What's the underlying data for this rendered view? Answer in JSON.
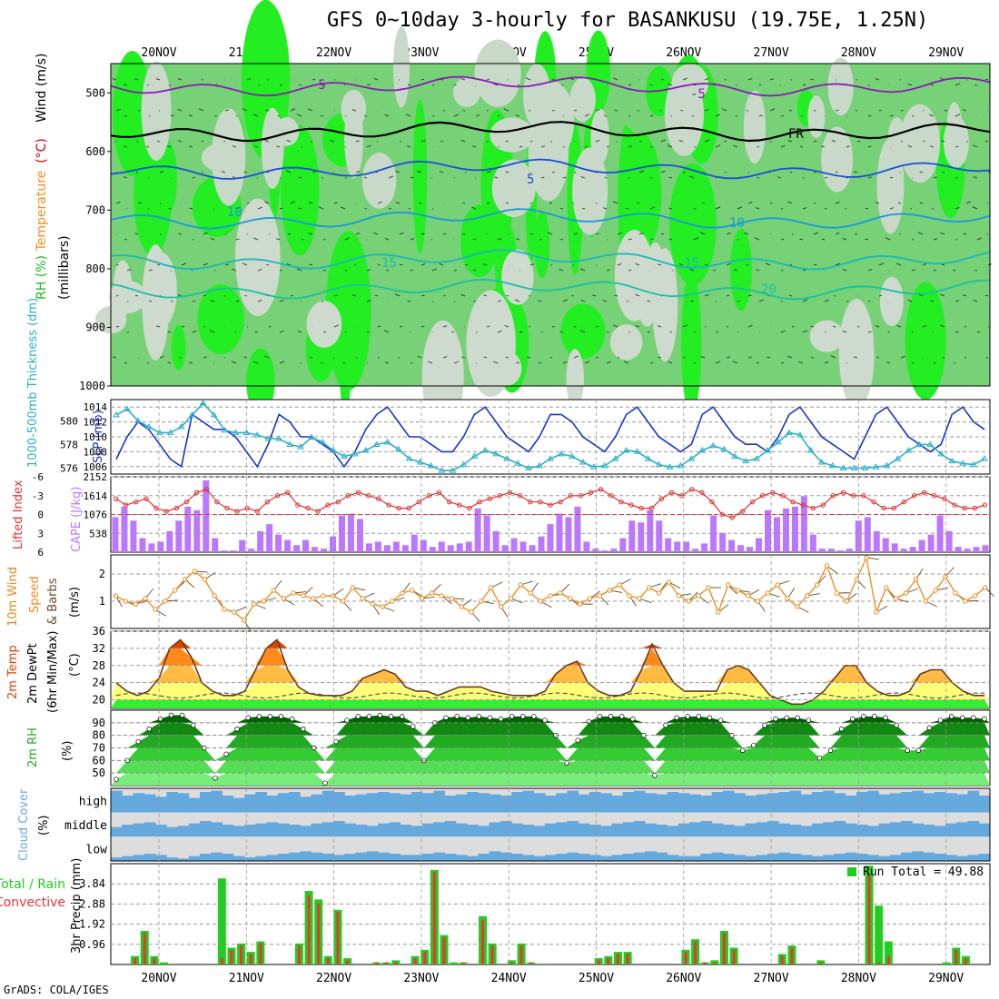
{
  "title": "GFS 0~10day 3-hourly for BASANKUSU (19.75E, 1.25N)",
  "footer": "GrADS: COLA/IGES",
  "chart_data": [
    {
      "type": "heatmap",
      "id": "upper",
      "ylabel_parts": [
        {
          "text": "RH (%)",
          "color": "#22bb22"
        },
        {
          "text": "Temperature",
          "color": "#ff8c1a"
        },
        {
          "text": " (°C)",
          "color": "#cc0000"
        },
        {
          "text": "Wind (m/s)",
          "color": "#000000"
        }
      ],
      "ylabel2": "(millibars)",
      "y_ticks": [
        500,
        600,
        700,
        800,
        900,
        1000
      ],
      "ylim": [
        450,
        1000
      ],
      "x_ticks": [
        "20NOV",
        "21NOV",
        "22NOV",
        "23NOV",
        "24NOV",
        "25NOV",
        "26NOV",
        "27NOV",
        "28NOV",
        "29NOV"
      ],
      "isotherm_labels": [
        "-5",
        "-5",
        "FR",
        "5",
        "10",
        "10",
        "15",
        "15",
        "20"
      ],
      "isotherms": [
        {
          "label": "-5",
          "level": 488,
          "color": "#8a1ab8"
        },
        {
          "label": "FR",
          "level": 565,
          "color": "#000000"
        },
        {
          "label": "5",
          "level": 630,
          "color": "#1a4fd6"
        },
        {
          "label": "10",
          "level": 715,
          "color": "#1a9ad6"
        },
        {
          "label": "15",
          "level": 785,
          "color": "#1ab8b8"
        },
        {
          "label": "20",
          "level": 835,
          "color": "#1ac0a0"
        }
      ]
    },
    {
      "type": "line",
      "id": "slp",
      "ylabel_left": "1000-500mb Thickness (dm)",
      "ylabel_right": "SLP (mb)",
      "y_ticks_left": [
        576,
        578,
        580
      ],
      "y_ticks_right": [
        1006,
        1008,
        1010,
        1012,
        1014
      ],
      "ylim_left": [
        575.5,
        581.8
      ],
      "ylim_right": [
        1005,
        1015
      ],
      "series": [
        {
          "name": "",
          "axis": "right",
          "color": "#1a34c8",
          "values": [
            1007,
            1010,
            1012,
            1011,
            1009,
            1007,
            1006,
            1013,
            1012,
            1011,
            1011,
            1010,
            1008,
            1006,
            1009,
            1013,
            1012,
            1010,
            1010,
            1009,
            1008,
            1006,
            1008,
            1011,
            1013,
            1014,
            1012,
            1010,
            1010,
            1009,
            1008,
            1008,
            1010,
            1013,
            1014,
            1012,
            1010,
            1009,
            1008,
            1010,
            1013,
            1013,
            1012,
            1010,
            1009,
            1008,
            1010,
            1013,
            1014,
            1012,
            1010,
            1009,
            1008,
            1009,
            1013,
            1014,
            1012,
            1010,
            1009,
            1009,
            1008,
            1010,
            1013,
            1014,
            1012,
            1010,
            1009,
            1008,
            1007,
            1010,
            1013,
            1014,
            1012,
            1010,
            1009,
            1008,
            1009,
            1013,
            1014,
            1012,
            1011
          ]
        },
        {
          "name": "",
          "axis": "left",
          "color": "#2ab0c8",
          "values": [
            580.5,
            581,
            580,
            579.5,
            579,
            579,
            579.5,
            580.5,
            581.5,
            580.5,
            579.2,
            579,
            579,
            578.8,
            578.5,
            578.5,
            578,
            577.8,
            578.6,
            578.2,
            577.5,
            577,
            577.2,
            577.5,
            578,
            578.2,
            577.6,
            576.8,
            576.5,
            576.2,
            575.8,
            575.8,
            576.3,
            577,
            577.5,
            577.2,
            576.8,
            576.4,
            576,
            576.2,
            576.8,
            577.2,
            577,
            576.5,
            576.1,
            576.2,
            576.8,
            577.5,
            577.4,
            576.8,
            576.3,
            576.1,
            576.2,
            576.8,
            577.5,
            577.9,
            577.6,
            577,
            576.6,
            576.8,
            577.5,
            578.2,
            579,
            578.8,
            577.5,
            576.5,
            576.2,
            576,
            576,
            576,
            576.1,
            576.2,
            576.8,
            577.5,
            578,
            578,
            577.2,
            576.6,
            576.4,
            576.3,
            576.8
          ]
        }
      ]
    },
    {
      "type": "bar",
      "id": "cape",
      "ylabel_left": "Lifted Index",
      "ylabel_right": "CAPE (J/kg)",
      "y_ticks_left": [
        "-6",
        "-3",
        "0",
        "3",
        "6"
      ],
      "y_ticks_right": [
        538,
        1076,
        1614,
        2152
      ],
      "ylim_right": [
        0,
        2152
      ],
      "cape_values": [
        1000,
        1300,
        900,
        400,
        250,
        300,
        600,
        900,
        1300,
        1200,
        2050,
        400,
        50,
        50,
        350,
        100,
        600,
        800,
        500,
        350,
        200,
        350,
        150,
        100,
        450,
        1050,
        1100,
        950,
        250,
        300,
        200,
        300,
        200,
        500,
        350,
        150,
        300,
        200,
        250,
        300,
        1250,
        1050,
        600,
        200,
        400,
        300,
        200,
        450,
        800,
        1100,
        1000,
        1300,
        300,
        100,
        50,
        100,
        400,
        900,
        850,
        1200,
        900,
        400,
        300,
        300,
        100,
        250,
        1050,
        550,
        350,
        200,
        150,
        400,
        1200,
        1000,
        1250,
        1300,
        1600,
        500,
        100,
        100,
        50,
        100,
        900,
        1000,
        600,
        400,
        250,
        100,
        150,
        350,
        500,
        1050,
        600,
        150,
        100,
        150,
        200
      ],
      "li_values": [
        -2.5,
        -1.5,
        -2,
        -2.5,
        -1,
        -0.5,
        -1,
        -2,
        -3.5,
        -4,
        -2,
        -1,
        -0.5,
        -1,
        -0.5,
        -2,
        -3,
        -3.5,
        -1.5,
        -1,
        -0.5,
        -1.5,
        -2,
        -3,
        -3.5,
        -3,
        -2.5,
        -1.5,
        -1,
        -1,
        -2,
        -3,
        -3.5,
        -2,
        -1.5,
        -1,
        -2,
        -2.5,
        -3,
        -3.5,
        -3,
        -2,
        -2,
        -1.5,
        -2,
        -3,
        -3,
        -3.5,
        -4,
        -3,
        -2,
        -1.5,
        -1,
        -1,
        -2.5,
        -3.5,
        -3,
        -4,
        -3.5,
        -2,
        0,
        0.5,
        -0.5,
        -2,
        -3,
        -3.5,
        -3,
        -2,
        -1.5,
        -1,
        -1.5,
        -3,
        -3.5,
        -3,
        -3,
        -2,
        -1,
        -1,
        -2,
        -3,
        -3.5,
        -3,
        -2.5,
        -1.5,
        -1,
        -1,
        -1.5
      ]
    },
    {
      "type": "line",
      "id": "wind",
      "ylabel": "10m Wind Speed & Barbs (m/s)",
      "y_ticks": [
        1,
        2
      ],
      "ylim": [
        0,
        2.7
      ],
      "series": [
        {
          "name": "",
          "color": "#e88a1a",
          "values": [
            1.2,
            1.0,
            0.9,
            1.1,
            0.7,
            1.0,
            1.4,
            1.8,
            2.1,
            1.8,
            1.2,
            0.7,
            0.6,
            0.3,
            0.9,
            1.0,
            1.4,
            1.1,
            1.3,
            1.2,
            1.1,
            1.2,
            1.2,
            1.0,
            1.5,
            1.1,
            0.9,
            0.8,
            1.0,
            1.3,
            1.4,
            1.1,
            1.3,
            1.2,
            1.1,
            0.8,
            0.6,
            1.0,
            1.5,
            0.8,
            1.1,
            1.6,
            1.3,
            1.0,
            1.2,
            1.3,
            1.1,
            0.9,
            1.1,
            1.2,
            1.4,
            1.6,
            1.2,
            1.1,
            1.5,
            1.3,
            1.7,
            1.2,
            1.0,
            1.2,
            1.5,
            0.6,
            1.6,
            1.4,
            1.2,
            1.0,
            1.3,
            1.6,
            1.1,
            0.8,
            1.2,
            1.6,
            2.3,
            1.3,
            1.0,
            1.8,
            2.6,
            0.6,
            1.5,
            1.1,
            1.3,
            1.8,
            1.0,
            1.4,
            1.9,
            1.3,
            1.0,
            1.2,
            1.5
          ]
        }
      ]
    },
    {
      "type": "area",
      "id": "temp",
      "ylabel": "2m Temp 2m DewPt (6hr Min/Max) (°C)",
      "y_ticks": [
        20,
        24,
        28,
        32,
        36
      ],
      "ylim": [
        18,
        36
      ],
      "series": [
        {
          "name": "",
          "color": "#e06010",
          "values": [
            24,
            22,
            21,
            22,
            25,
            32,
            34,
            30,
            24,
            22,
            21,
            21,
            22,
            27,
            32,
            34,
            27,
            23,
            21.5,
            21,
            21,
            21,
            22,
            25,
            26,
            27,
            26,
            23,
            22,
            22,
            21,
            22,
            23,
            23,
            23,
            22,
            21.5,
            21,
            21,
            21,
            22,
            26,
            28,
            29,
            24,
            22,
            21,
            21,
            22,
            27,
            33,
            28,
            24,
            22,
            22,
            22,
            22,
            27,
            28,
            27,
            24,
            21,
            20,
            19,
            19,
            20,
            22,
            25,
            28,
            28,
            24,
            22,
            21,
            21,
            22,
            26,
            27,
            27,
            24,
            22,
            21,
            21
          ]
        }
      ]
    },
    {
      "type": "area",
      "id": "rh",
      "ylabel": "2m RH (%)",
      "y_ticks": [
        50,
        60,
        70,
        80,
        90
      ],
      "ylim": [
        40,
        100
      ],
      "series": [
        {
          "name": "",
          "color": "#006400",
          "values": [
            45,
            60,
            75,
            85,
            93,
            96,
            96,
            88,
            70,
            46,
            65,
            85,
            94,
            95,
            95,
            95,
            93,
            85,
            70,
            42,
            75,
            92,
            95,
            95,
            96,
            95,
            95,
            87,
            60,
            90,
            94,
            95,
            94,
            95,
            94,
            93,
            95,
            95,
            95,
            92,
            80,
            58,
            76,
            91,
            95,
            95,
            95,
            93,
            80,
            48,
            88,
            94,
            95,
            95,
            94,
            92,
            80,
            68,
            72,
            88,
            93,
            94,
            94,
            92,
            62,
            68,
            85,
            93,
            95,
            95,
            94,
            88,
            68,
            68,
            86,
            92,
            95,
            94,
            94,
            93
          ]
        }
      ]
    },
    {
      "type": "table",
      "id": "cloud",
      "ylabel": "Cloud Cover (%)",
      "rows": [
        "high",
        "middle",
        "low"
      ],
      "low": [
        15,
        20,
        25,
        30,
        25,
        15,
        10,
        20,
        30,
        35,
        30,
        20,
        15,
        20,
        25,
        30,
        35,
        40,
        35,
        30,
        25,
        30,
        35,
        40,
        35,
        30,
        25,
        25,
        30,
        35,
        30,
        25,
        20,
        30,
        40,
        35,
        30,
        25,
        20,
        25,
        30,
        35,
        30,
        25,
        20,
        25,
        30,
        35,
        40,
        35,
        25,
        20,
        20,
        30,
        35,
        30,
        25,
        20,
        25,
        30,
        35,
        30,
        25,
        20,
        25,
        30,
        35,
        30,
        25,
        20,
        25,
        35,
        40,
        35,
        30,
        25,
        20,
        25,
        30
      ],
      "mid": [
        40,
        50,
        55,
        60,
        50,
        40,
        45,
        55,
        65,
        60,
        50,
        45,
        50,
        55,
        60,
        55,
        50,
        45,
        55,
        60,
        65,
        55,
        50,
        45,
        55,
        60,
        50,
        45,
        55,
        60,
        65,
        55,
        50,
        45,
        60,
        65,
        55,
        50,
        45,
        55,
        60,
        65,
        55,
        50,
        45,
        55,
        60,
        65,
        55,
        50,
        45,
        55,
        60,
        65,
        55,
        50,
        45,
        55,
        60,
        65,
        55,
        50,
        45,
        55,
        60,
        65,
        55,
        50,
        45,
        55,
        60,
        65,
        55,
        50,
        45,
        55,
        60,
        65,
        55
      ],
      "high": [
        90,
        70,
        80,
        75,
        65,
        85,
        80,
        60,
        85,
        90,
        70,
        60,
        75,
        85,
        70,
        80,
        85,
        65,
        75,
        90,
        85,
        70,
        75,
        80,
        85,
        80,
        75,
        85,
        80,
        90,
        70,
        75,
        85,
        80,
        75,
        70,
        85,
        90,
        80,
        70,
        80,
        90,
        75,
        85,
        80,
        70,
        85,
        90,
        80,
        75,
        85,
        80,
        75,
        70,
        85,
        90,
        80,
        70,
        75,
        80,
        85,
        90,
        75,
        85,
        90,
        80,
        70,
        85,
        90,
        75,
        80,
        85,
        90,
        80,
        85,
        80,
        75,
        90,
        70
      ]
    },
    {
      "type": "bar",
      "id": "precip",
      "ylabel_left": "Total / Rain",
      "ylabel_left2": "Convective",
      "ylabel": "3hr Precip (mm)",
      "y_ticks": [
        "0.96",
        "1.92",
        "2.88",
        "3.84"
      ],
      "ylim": [
        0,
        4.8
      ],
      "run_total_label": "Run Total = 49.88",
      "total": [
        0,
        0,
        0.4,
        1.6,
        0.4,
        0.1,
        0,
        0,
        0,
        0,
        0,
        4.1,
        0.8,
        1,
        0.6,
        1.1,
        0,
        0,
        0,
        1,
        3.5,
        3.1,
        0.4,
        2.6,
        0.3,
        0,
        0,
        0.1,
        0.1,
        0.2,
        0,
        0.4,
        0.7,
        4.5,
        1.4,
        0.1,
        0.1,
        0,
        2.3,
        1,
        0,
        0.2,
        1,
        0.1,
        0,
        0,
        0,
        0,
        0,
        0,
        0.3,
        0.4,
        0.6,
        0.6,
        0,
        0,
        0,
        0,
        0,
        0.7,
        1.2,
        0.1,
        0.2,
        1.6,
        0.8,
        0,
        0,
        0,
        0,
        0.5,
        0.9,
        0,
        0,
        0.2,
        0,
        0,
        0,
        0,
        4.7,
        2.8,
        1.1,
        0,
        0,
        0,
        0,
        0,
        0.1,
        0.8,
        0.4,
        0,
        0
      ],
      "conv": [
        0,
        0,
        0.3,
        1.5,
        0.3,
        0,
        0,
        0,
        0,
        0,
        0,
        0.3,
        0.7,
        0.9,
        0.5,
        1,
        0,
        0,
        0,
        0.9,
        3.3,
        2.9,
        0.3,
        2.5,
        0.2,
        0,
        0,
        0.1,
        0.1,
        0.1,
        0,
        0.3,
        0.6,
        4.4,
        1.3,
        0,
        0.1,
        0,
        2.1,
        0.9,
        0,
        0.1,
        0.9,
        0.1,
        0,
        0,
        0,
        0,
        0,
        0,
        0.2,
        0.3,
        0.5,
        0.5,
        0,
        0,
        0,
        0,
        0,
        0.6,
        1.1,
        0.1,
        0.1,
        1.5,
        0.7,
        0,
        0,
        0,
        0,
        0.4,
        0.8,
        0,
        0,
        0.1,
        0,
        0,
        0,
        0,
        4.3,
        0.1,
        0.4,
        0,
        0,
        0,
        0,
        0,
        0,
        0.7,
        0.3,
        0,
        0
      ]
    }
  ]
}
